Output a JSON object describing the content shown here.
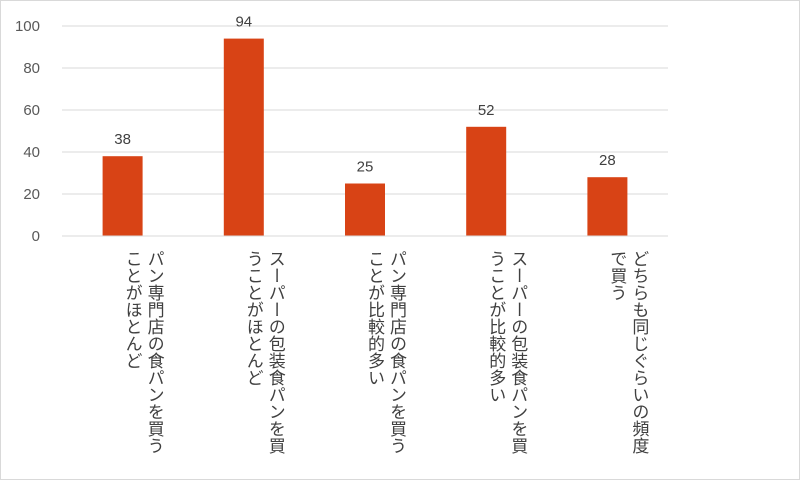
{
  "chart_data": {
    "type": "bar",
    "categories": [
      "パン専門店の食パンを買うことがほとんど",
      "スーパーの包装食パンを買うことがほとんど",
      "パン専門店の食パンを買うことが比較的多い",
      "スーパーの包装食パンを買うことが比較的多い",
      "どちらも同じぐらいの頻度で買う"
    ],
    "values": [
      38,
      94,
      25,
      52,
      28
    ],
    "data_labels": [
      "38",
      "94",
      "25",
      "52",
      "28"
    ],
    "y_ticks": [
      "0",
      "20",
      "40",
      "60",
      "80",
      "100"
    ],
    "ylim": [
      0,
      100
    ],
    "grid": true,
    "legend": "none",
    "title": "",
    "xlabel": "",
    "ylabel": "",
    "bar_color": "#d84315",
    "grid_color": "#d9d9d9"
  }
}
